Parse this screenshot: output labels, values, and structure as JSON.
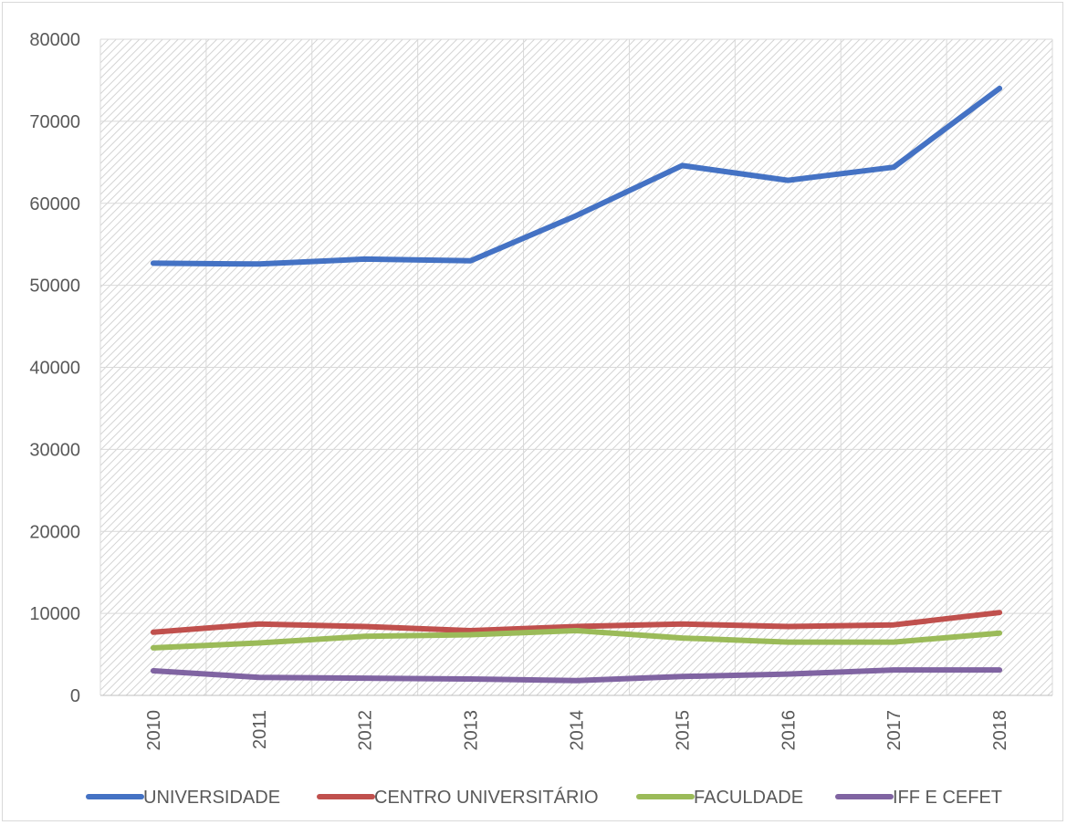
{
  "chart_data": {
    "type": "line",
    "title": "",
    "xlabel": "",
    "ylabel": "",
    "categories": [
      "2010",
      "2011",
      "2012",
      "2013",
      "2014",
      "2015",
      "2016",
      "2017",
      "2018"
    ],
    "ylim": [
      0,
      80000
    ],
    "yticks": [
      0,
      10000,
      20000,
      30000,
      40000,
      50000,
      60000,
      70000,
      80000
    ],
    "grid": true,
    "legend_position": "bottom",
    "series": [
      {
        "name": "UNIVERSIDADE",
        "color": "#4472c4",
        "values": [
          52700,
          52600,
          53200,
          53000,
          58500,
          64600,
          62800,
          64400,
          74000
        ]
      },
      {
        "name": "CENTRO UNIVERSITÁRIO",
        "color": "#c0504d",
        "values": [
          7700,
          8700,
          8400,
          7900,
          8400,
          8700,
          8400,
          8600,
          10100
        ]
      },
      {
        "name": "FACULDADE",
        "color": "#9bbb59",
        "values": [
          5800,
          6400,
          7200,
          7400,
          7900,
          7000,
          6500,
          6500,
          7600
        ]
      },
      {
        "name": "IFF E CEFET",
        "color": "#8064a2",
        "values": [
          3000,
          2200,
          2100,
          2000,
          1800,
          2300,
          2600,
          3100,
          3100
        ]
      }
    ]
  }
}
